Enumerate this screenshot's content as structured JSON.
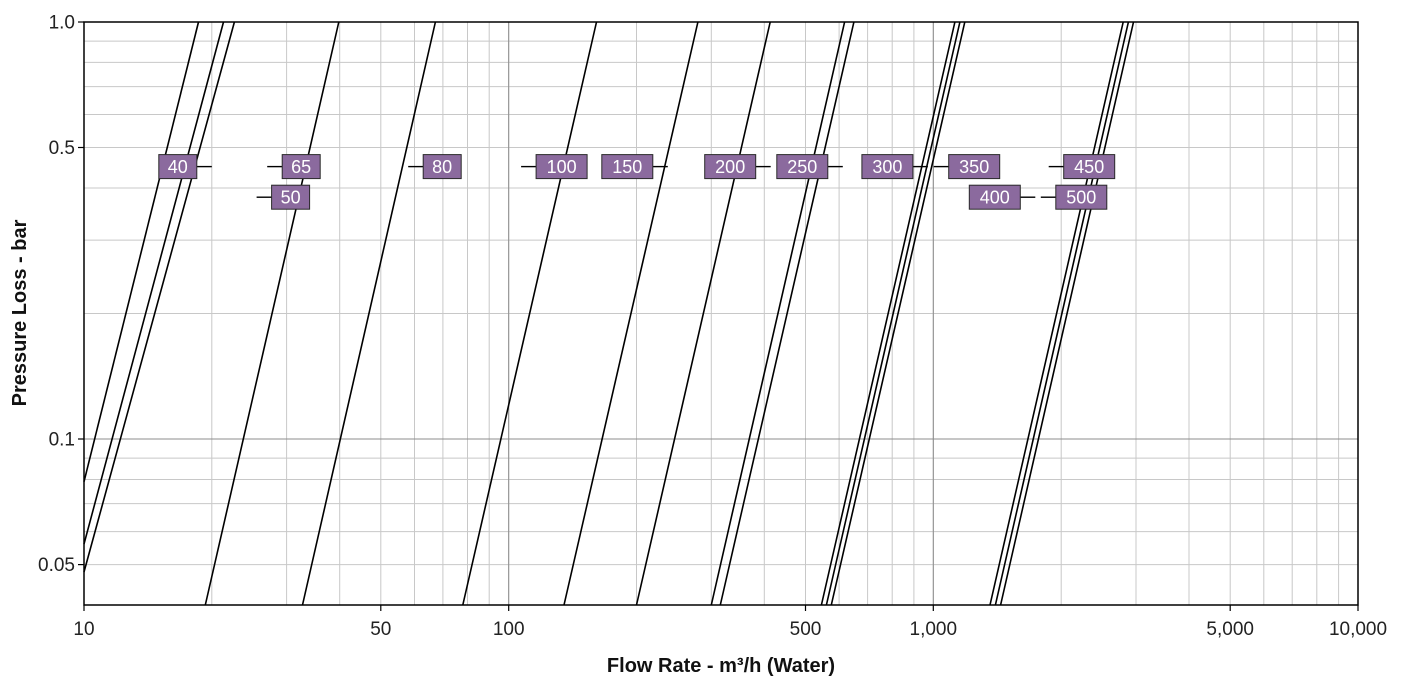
{
  "chart_data": {
    "type": "line",
    "title": "",
    "xlabel": "Flow Rate - m³/h (Water)",
    "ylabel": "Pressure Loss - bar",
    "x_scale": "log",
    "y_scale": "log",
    "xlim": [
      10,
      10000
    ],
    "ylim": [
      0.04,
      1.0
    ],
    "grid": true,
    "x_tick_labels": [
      {
        "value": 10,
        "label": "10"
      },
      {
        "value": 50,
        "label": "50"
      },
      {
        "value": 100,
        "label": "100"
      },
      {
        "value": 500,
        "label": "500"
      },
      {
        "value": 1000,
        "label": "1,000"
      },
      {
        "value": 5000,
        "label": "5,000"
      },
      {
        "value": 10000,
        "label": "10,000"
      }
    ],
    "y_tick_labels": [
      {
        "value": 0.05,
        "label": "0.05"
      },
      {
        "value": 0.1,
        "label": "0.1"
      },
      {
        "value": 0.5,
        "label": "0.5"
      },
      {
        "value": 1.0,
        "label": "1.0"
      }
    ],
    "series_color": "#000000",
    "label_color": "#8b6a9e",
    "series": [
      {
        "name": "40",
        "points": [
          [
            10,
            0.079
          ],
          [
            18.6,
            1.0
          ]
        ]
      },
      {
        "name": "50",
        "points": [
          [
            10,
            0.048
          ],
          [
            22.6,
            1.0
          ]
        ]
      },
      {
        "name": "65",
        "points": [
          [
            10,
            0.056
          ],
          [
            21.3,
            1.0
          ]
        ]
      },
      {
        "name": "80",
        "points": [
          [
            19.3,
            0.04
          ],
          [
            39.8,
            1.0
          ]
        ]
      },
      {
        "name": "100",
        "points": [
          [
            32.7,
            0.04
          ],
          [
            67.2,
            1.0
          ]
        ]
      },
      {
        "name": "150",
        "points": [
          [
            78,
            0.04
          ],
          [
            161,
            1.0
          ]
        ]
      },
      {
        "name": "200",
        "points": [
          [
            135,
            0.04
          ],
          [
            279,
            1.0
          ]
        ]
      },
      {
        "name": "250",
        "points": [
          [
            200,
            0.04
          ],
          [
            413,
            1.0
          ]
        ]
      },
      {
        "name": "300",
        "points": [
          [
            315,
            0.04
          ],
          [
            650,
            1.0
          ]
        ]
      },
      {
        "name": "350",
        "points": [
          [
            300,
            0.04
          ],
          [
            618,
            1.0
          ]
        ]
      },
      {
        "name": "400",
        "points": [
          [
            545,
            0.04
          ],
          [
            1124,
            1.0
          ]
        ]
      },
      {
        "name": "450",
        "points": [
          [
            575,
            0.04
          ],
          [
            1186,
            1.0
          ]
        ]
      },
      {
        "name": "500",
        "points": [
          [
            560,
            0.04
          ],
          [
            1155,
            1.0
          ]
        ]
      },
      {
        "name": "",
        "points": [
          [
            1360,
            0.04
          ],
          [
            2800,
            1.0
          ]
        ]
      },
      {
        "name": "",
        "points": [
          [
            1400,
            0.04
          ],
          [
            2880,
            1.0
          ]
        ]
      },
      {
        "name": "",
        "points": [
          [
            1440,
            0.04
          ],
          [
            2960,
            1.0
          ]
        ]
      }
    ],
    "labels": [
      {
        "text": "40",
        "x": 20,
        "y": 0.45,
        "side": "left"
      },
      {
        "text": "65",
        "x": 27,
        "y": 0.45,
        "side": "right"
      },
      {
        "text": "50",
        "x": 25.5,
        "y": 0.38,
        "side": "right"
      },
      {
        "text": "80",
        "x": 58,
        "y": 0.45,
        "side": "right"
      },
      {
        "text": "100",
        "x": 107,
        "y": 0.45,
        "side": "right"
      },
      {
        "text": "150",
        "x": 237,
        "y": 0.45,
        "side": "left"
      },
      {
        "text": "200",
        "x": 414,
        "y": 0.45,
        "side": "left"
      },
      {
        "text": "250",
        "x": 612,
        "y": 0.45,
        "side": "left"
      },
      {
        "text": "300",
        "x": 971,
        "y": 0.45,
        "side": "left"
      },
      {
        "text": "350",
        "x": 1002,
        "y": 0.45,
        "side": "right"
      },
      {
        "text": "400",
        "x": 1738,
        "y": 0.38,
        "side": "left"
      },
      {
        "text": "450",
        "x": 1869,
        "y": 0.45,
        "side": "right"
      },
      {
        "text": "500",
        "x": 1791,
        "y": 0.38,
        "side": "right"
      }
    ]
  }
}
